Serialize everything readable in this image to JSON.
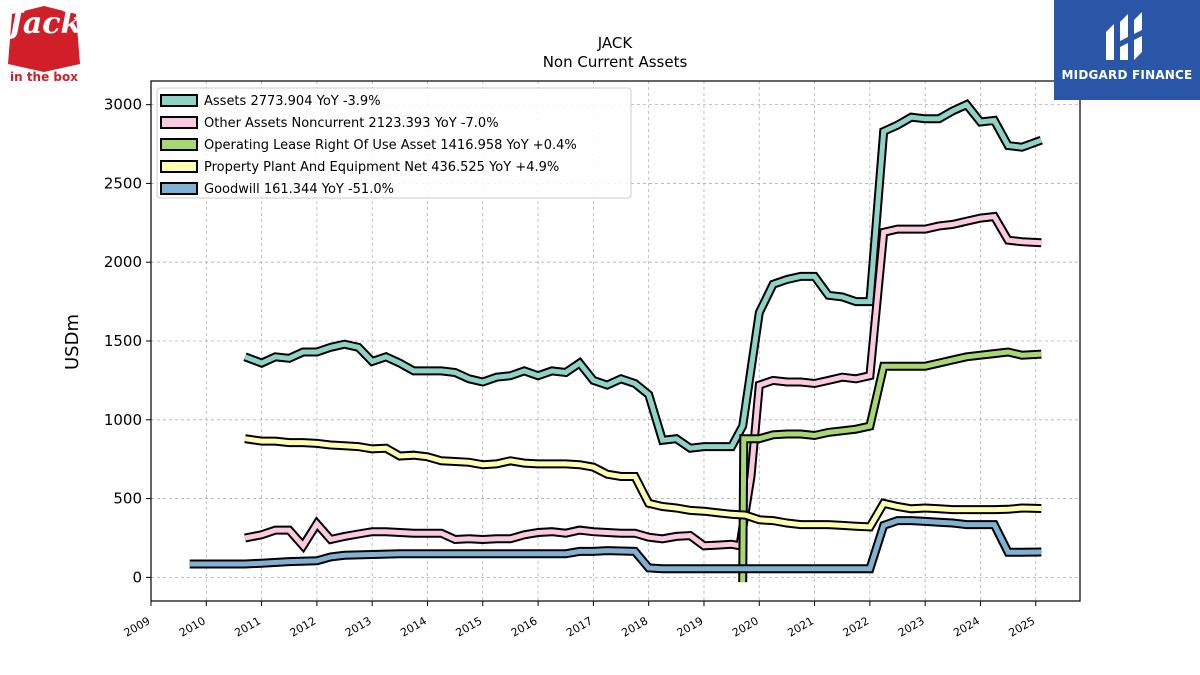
{
  "logos": {
    "left_brand": "Jack",
    "left_sub": "in the box",
    "right_brand": "MIDGARD FINANCE"
  },
  "chart_data": {
    "type": "line",
    "title": "JACK",
    "subtitle": "Non Current  Assets",
    "ylabel": "USDm",
    "xlabel": "",
    "xlim": [
      2009.0,
      2025.8
    ],
    "ylim": [
      -150,
      3150
    ],
    "yticks": [
      0,
      500,
      1000,
      1500,
      2000,
      2500,
      3000
    ],
    "xticks": [
      "2009",
      "2010",
      "2011",
      "2012",
      "2013",
      "2014",
      "2015",
      "2016",
      "2017",
      "2018",
      "2019",
      "2020",
      "2021",
      "2022",
      "2023",
      "2024",
      "2025"
    ],
    "grid": true,
    "legend_position": "top-left",
    "colors": {
      "assets": "#8dd3c7",
      "other": "#fbc9e0",
      "lease": "#a8d672",
      "ppe": "#ffffb3",
      "goodwill": "#80b1d3",
      "outline": "#000000"
    },
    "series": [
      {
        "name": "Assets  2773.904 YoY -3.9%",
        "color": "#8dd3c7",
        "points": [
          [
            2010.7,
            1400
          ],
          [
            2011.0,
            1360
          ],
          [
            2011.25,
            1400
          ],
          [
            2011.5,
            1390
          ],
          [
            2011.75,
            1430
          ],
          [
            2012.0,
            1430
          ],
          [
            2012.25,
            1460
          ],
          [
            2012.5,
            1480
          ],
          [
            2012.75,
            1460
          ],
          [
            2013.0,
            1370
          ],
          [
            2013.25,
            1400
          ],
          [
            2013.5,
            1360
          ],
          [
            2013.75,
            1310
          ],
          [
            2014.0,
            1310
          ],
          [
            2014.25,
            1310
          ],
          [
            2014.5,
            1300
          ],
          [
            2014.75,
            1260
          ],
          [
            2015.0,
            1240
          ],
          [
            2015.25,
            1270
          ],
          [
            2015.5,
            1280
          ],
          [
            2015.75,
            1310
          ],
          [
            2016.0,
            1280
          ],
          [
            2016.25,
            1310
          ],
          [
            2016.5,
            1300
          ],
          [
            2016.75,
            1360
          ],
          [
            2017.0,
            1250
          ],
          [
            2017.25,
            1220
          ],
          [
            2017.5,
            1260
          ],
          [
            2017.75,
            1230
          ],
          [
            2018.0,
            1160
          ],
          [
            2018.25,
            870
          ],
          [
            2018.5,
            880
          ],
          [
            2018.75,
            820
          ],
          [
            2019.0,
            830
          ],
          [
            2019.25,
            830
          ],
          [
            2019.5,
            830
          ],
          [
            2019.7,
            960
          ],
          [
            2020.0,
            1680
          ],
          [
            2020.25,
            1860
          ],
          [
            2020.5,
            1890
          ],
          [
            2020.75,
            1910
          ],
          [
            2021.0,
            1910
          ],
          [
            2021.25,
            1790
          ],
          [
            2021.5,
            1780
          ],
          [
            2021.75,
            1750
          ],
          [
            2022.0,
            1750
          ],
          [
            2022.25,
            2830
          ],
          [
            2022.5,
            2870
          ],
          [
            2022.75,
            2920
          ],
          [
            2023.0,
            2910
          ],
          [
            2023.25,
            2910
          ],
          [
            2023.5,
            2960
          ],
          [
            2023.75,
            3000
          ],
          [
            2024.0,
            2890
          ],
          [
            2024.25,
            2900
          ],
          [
            2024.5,
            2740
          ],
          [
            2024.75,
            2730
          ],
          [
            2025.1,
            2774
          ]
        ]
      },
      {
        "name": "Other Assets Noncurrent  2123.393 YoY -7.0%",
        "color": "#fbc9e0",
        "points": [
          [
            2010.7,
            250
          ],
          [
            2011.0,
            270
          ],
          [
            2011.25,
            300
          ],
          [
            2011.5,
            300
          ],
          [
            2011.75,
            200
          ],
          [
            2012.0,
            340
          ],
          [
            2012.25,
            240
          ],
          [
            2012.5,
            260
          ],
          [
            2012.75,
            275
          ],
          [
            2013.0,
            290
          ],
          [
            2013.25,
            290
          ],
          [
            2013.5,
            285
          ],
          [
            2013.75,
            280
          ],
          [
            2014.0,
            280
          ],
          [
            2014.25,
            280
          ],
          [
            2014.5,
            240
          ],
          [
            2014.75,
            245
          ],
          [
            2015.0,
            240
          ],
          [
            2015.25,
            245
          ],
          [
            2015.5,
            245
          ],
          [
            2015.75,
            270
          ],
          [
            2016.0,
            285
          ],
          [
            2016.25,
            290
          ],
          [
            2016.5,
            280
          ],
          [
            2016.75,
            300
          ],
          [
            2017.0,
            290
          ],
          [
            2017.25,
            285
          ],
          [
            2017.5,
            280
          ],
          [
            2017.75,
            280
          ],
          [
            2018.0,
            255
          ],
          [
            2018.25,
            245
          ],
          [
            2018.5,
            260
          ],
          [
            2018.75,
            265
          ],
          [
            2019.0,
            200
          ],
          [
            2019.25,
            205
          ],
          [
            2019.5,
            210
          ],
          [
            2019.65,
            200
          ],
          [
            2019.85,
            640
          ],
          [
            2020.0,
            1220
          ],
          [
            2020.25,
            1250
          ],
          [
            2020.5,
            1240
          ],
          [
            2020.75,
            1240
          ],
          [
            2021.0,
            1230
          ],
          [
            2021.25,
            1250
          ],
          [
            2021.5,
            1270
          ],
          [
            2021.75,
            1260
          ],
          [
            2022.0,
            1280
          ],
          [
            2022.25,
            2190
          ],
          [
            2022.5,
            2210
          ],
          [
            2022.75,
            2210
          ],
          [
            2023.0,
            2210
          ],
          [
            2023.25,
            2230
          ],
          [
            2023.5,
            2240
          ],
          [
            2023.75,
            2260
          ],
          [
            2024.0,
            2280
          ],
          [
            2024.25,
            2290
          ],
          [
            2024.5,
            2140
          ],
          [
            2024.75,
            2130
          ],
          [
            2025.1,
            2123
          ]
        ]
      },
      {
        "name": "Operating Lease Right Of Use Asset  1416.958 YoY +0.4%",
        "color": "#a8d672",
        "points": [
          [
            2019.7,
            -30
          ],
          [
            2019.72,
            880
          ],
          [
            2020.0,
            880
          ],
          [
            2020.25,
            905
          ],
          [
            2020.5,
            910
          ],
          [
            2020.75,
            910
          ],
          [
            2021.0,
            900
          ],
          [
            2021.25,
            920
          ],
          [
            2021.5,
            930
          ],
          [
            2021.75,
            940
          ],
          [
            2022.0,
            960
          ],
          [
            2022.25,
            1340
          ],
          [
            2022.5,
            1340
          ],
          [
            2022.75,
            1340
          ],
          [
            2023.0,
            1340
          ],
          [
            2023.25,
            1360
          ],
          [
            2023.5,
            1380
          ],
          [
            2023.75,
            1400
          ],
          [
            2024.0,
            1410
          ],
          [
            2024.25,
            1420
          ],
          [
            2024.5,
            1430
          ],
          [
            2024.75,
            1410
          ],
          [
            2025.1,
            1417
          ]
        ]
      },
      {
        "name": "Property Plant And Equipment Net  436.525 YoY +4.9%",
        "color": "#ffffb3",
        "points": [
          [
            2010.7,
            880
          ],
          [
            2011.0,
            865
          ],
          [
            2011.25,
            865
          ],
          [
            2011.5,
            855
          ],
          [
            2011.75,
            855
          ],
          [
            2012.0,
            850
          ],
          [
            2012.25,
            840
          ],
          [
            2012.5,
            835
          ],
          [
            2012.75,
            830
          ],
          [
            2013.0,
            815
          ],
          [
            2013.25,
            820
          ],
          [
            2013.5,
            770
          ],
          [
            2013.75,
            775
          ],
          [
            2014.0,
            765
          ],
          [
            2014.25,
            740
          ],
          [
            2014.5,
            735
          ],
          [
            2014.75,
            730
          ],
          [
            2015.0,
            715
          ],
          [
            2015.25,
            720
          ],
          [
            2015.5,
            740
          ],
          [
            2015.75,
            725
          ],
          [
            2016.0,
            720
          ],
          [
            2016.25,
            720
          ],
          [
            2016.5,
            720
          ],
          [
            2016.75,
            715
          ],
          [
            2017.0,
            700
          ],
          [
            2017.25,
            655
          ],
          [
            2017.5,
            640
          ],
          [
            2017.75,
            640
          ],
          [
            2018.0,
            470
          ],
          [
            2018.25,
            450
          ],
          [
            2018.5,
            440
          ],
          [
            2018.75,
            425
          ],
          [
            2019.0,
            420
          ],
          [
            2019.25,
            410
          ],
          [
            2019.5,
            400
          ],
          [
            2019.75,
            395
          ],
          [
            2020.0,
            365
          ],
          [
            2020.25,
            360
          ],
          [
            2020.5,
            345
          ],
          [
            2020.75,
            335
          ],
          [
            2021.0,
            335
          ],
          [
            2021.25,
            335
          ],
          [
            2021.5,
            330
          ],
          [
            2021.75,
            325
          ],
          [
            2022.0,
            320
          ],
          [
            2022.25,
            470
          ],
          [
            2022.5,
            450
          ],
          [
            2022.75,
            435
          ],
          [
            2023.0,
            440
          ],
          [
            2023.25,
            435
          ],
          [
            2023.5,
            430
          ],
          [
            2023.75,
            430
          ],
          [
            2024.0,
            430
          ],
          [
            2024.25,
            430
          ],
          [
            2024.5,
            432
          ],
          [
            2024.75,
            440
          ],
          [
            2025.1,
            437
          ]
        ]
      },
      {
        "name": "Goodwill  161.344 YoY -51.0%",
        "color": "#80b1d3",
        "points": [
          [
            2009.7,
            85
          ],
          [
            2010.0,
            85
          ],
          [
            2010.7,
            85
          ],
          [
            2011.0,
            90
          ],
          [
            2011.5,
            100
          ],
          [
            2012.0,
            105
          ],
          [
            2012.25,
            130
          ],
          [
            2012.5,
            140
          ],
          [
            2013.0,
            145
          ],
          [
            2013.5,
            150
          ],
          [
            2014.0,
            150
          ],
          [
            2015.0,
            150
          ],
          [
            2016.0,
            150
          ],
          [
            2016.5,
            150
          ],
          [
            2016.75,
            165
          ],
          [
            2017.0,
            165
          ],
          [
            2017.25,
            170
          ],
          [
            2017.75,
            165
          ],
          [
            2018.0,
            60
          ],
          [
            2018.25,
            55
          ],
          [
            2019.0,
            55
          ],
          [
            2020.0,
            55
          ],
          [
            2021.0,
            55
          ],
          [
            2022.0,
            55
          ],
          [
            2022.25,
            330
          ],
          [
            2022.5,
            360
          ],
          [
            2022.75,
            360
          ],
          [
            2023.0,
            355
          ],
          [
            2023.25,
            350
          ],
          [
            2023.5,
            345
          ],
          [
            2023.75,
            335
          ],
          [
            2024.0,
            335
          ],
          [
            2024.25,
            335
          ],
          [
            2024.5,
            160
          ],
          [
            2024.75,
            160
          ],
          [
            2025.1,
            161
          ]
        ]
      }
    ]
  }
}
